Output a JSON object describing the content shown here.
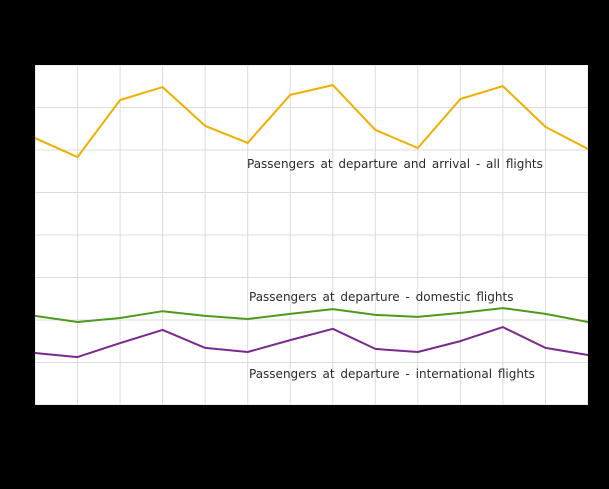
{
  "page": {
    "background_color": "#000000",
    "plot_background_color": "#ffffff"
  },
  "chart_data": {
    "type": "line",
    "title": "",
    "xlabel": "",
    "ylabel": "",
    "x_axis_labels_visible": false,
    "y_axis_labels_visible": false,
    "ylim": [
      0,
      100
    ],
    "grid": {
      "visible": true,
      "color": "#dcdcdc",
      "x_divisions": 13,
      "y_divisions": 8
    },
    "legend_position": "inline-labels",
    "series": [
      {
        "name": "Passengers at departure and arrival - all flights",
        "color": "#eeb000",
        "values": [
          78.5,
          72.9,
          89.7,
          93.5,
          82.1,
          77.1,
          91.2,
          94.1,
          80.9,
          75.6,
          90.0,
          93.8,
          81.8,
          75.3
        ]
      },
      {
        "name": "Passengers at departure - domestic flights",
        "color": "#4e9a1f",
        "values": [
          26.2,
          24.4,
          25.6,
          27.6,
          26.2,
          25.3,
          26.8,
          28.2,
          26.5,
          25.9,
          27.1,
          28.5,
          26.8,
          24.4
        ]
      },
      {
        "name": "Passengers at departure - international flights",
        "color": "#7a2a8c",
        "values": [
          15.3,
          14.1,
          18.2,
          22.1,
          16.8,
          15.6,
          19.1,
          22.4,
          16.5,
          15.6,
          18.8,
          22.9,
          16.8,
          14.7
        ]
      }
    ]
  }
}
